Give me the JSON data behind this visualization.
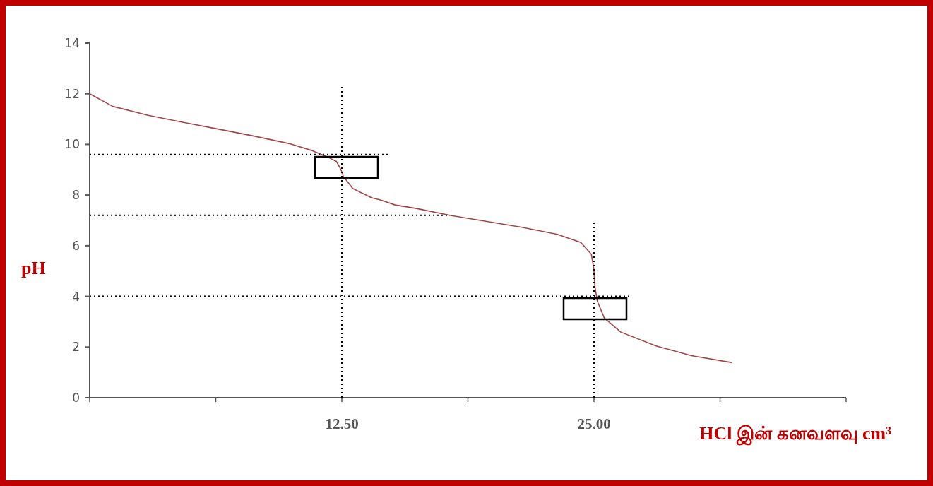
{
  "chart_data": {
    "type": "line",
    "xlabel": "HCl இன் கனவளவு cm³",
    "ylabel": "pH",
    "xlim": [
      0,
      37.5
    ],
    "ylim": [
      0,
      14
    ],
    "xticks": [
      {
        "value": 0,
        "label": null
      },
      {
        "value": 6.25,
        "label": null
      },
      {
        "value": 12.5,
        "label": "12.50"
      },
      {
        "value": 18.75,
        "label": null
      },
      {
        "value": 25,
        "label": "25.00"
      },
      {
        "value": 31.25,
        "label": null
      },
      {
        "value": 37.5,
        "label": null
      }
    ],
    "yticks": [
      0,
      2,
      4,
      6,
      8,
      10,
      12,
      14
    ],
    "grid": false,
    "marker": "none",
    "series": [
      {
        "color": "#a0474c",
        "line_style": "solid",
        "x": [
          0,
          1.15,
          2.9,
          4.65,
          6.4,
          8.15,
          9.9,
          11.05,
          11.75,
          12.23,
          12.46,
          12.58,
          13.04,
          13.27,
          13.98,
          14.44,
          15.14,
          16.2,
          17.94,
          19.69,
          21.43,
          23.18,
          24.35,
          24.87,
          24.99,
          25.05,
          25.17,
          25.51,
          26.33,
          28.08,
          29.83,
          31.81
        ],
        "values": [
          12.0,
          11.5,
          11.15,
          10.87,
          10.6,
          10.33,
          10.03,
          9.75,
          9.52,
          9.33,
          9.0,
          8.73,
          8.26,
          8.17,
          7.89,
          7.8,
          7.61,
          7.47,
          7.19,
          6.96,
          6.73,
          6.45,
          6.13,
          5.66,
          5.1,
          4.36,
          3.8,
          3.15,
          2.59,
          2.04,
          1.66,
          1.39
        ]
      },
      {
        "color": "#000000",
        "line_style": "dotted",
        "x": [
          0,
          14.9
        ],
        "values": [
          9.6,
          9.6
        ]
      },
      {
        "color": "#000000",
        "line_style": "dotted",
        "x": [
          0,
          17.8
        ],
        "values": [
          7.2,
          7.2
        ]
      },
      {
        "color": "#000000",
        "line_style": "dotted",
        "x": [
          0,
          26.8
        ],
        "values": [
          4.0,
          4.0
        ]
      },
      {
        "color": "#000000",
        "line_style": "dotted",
        "x": [
          12.5,
          12.5
        ],
        "values": [
          0,
          12.3
        ]
      },
      {
        "color": "#000000",
        "line_style": "dotted",
        "x": [
          25,
          25
        ],
        "values": [
          0,
          6.9
        ]
      }
    ]
  }
}
